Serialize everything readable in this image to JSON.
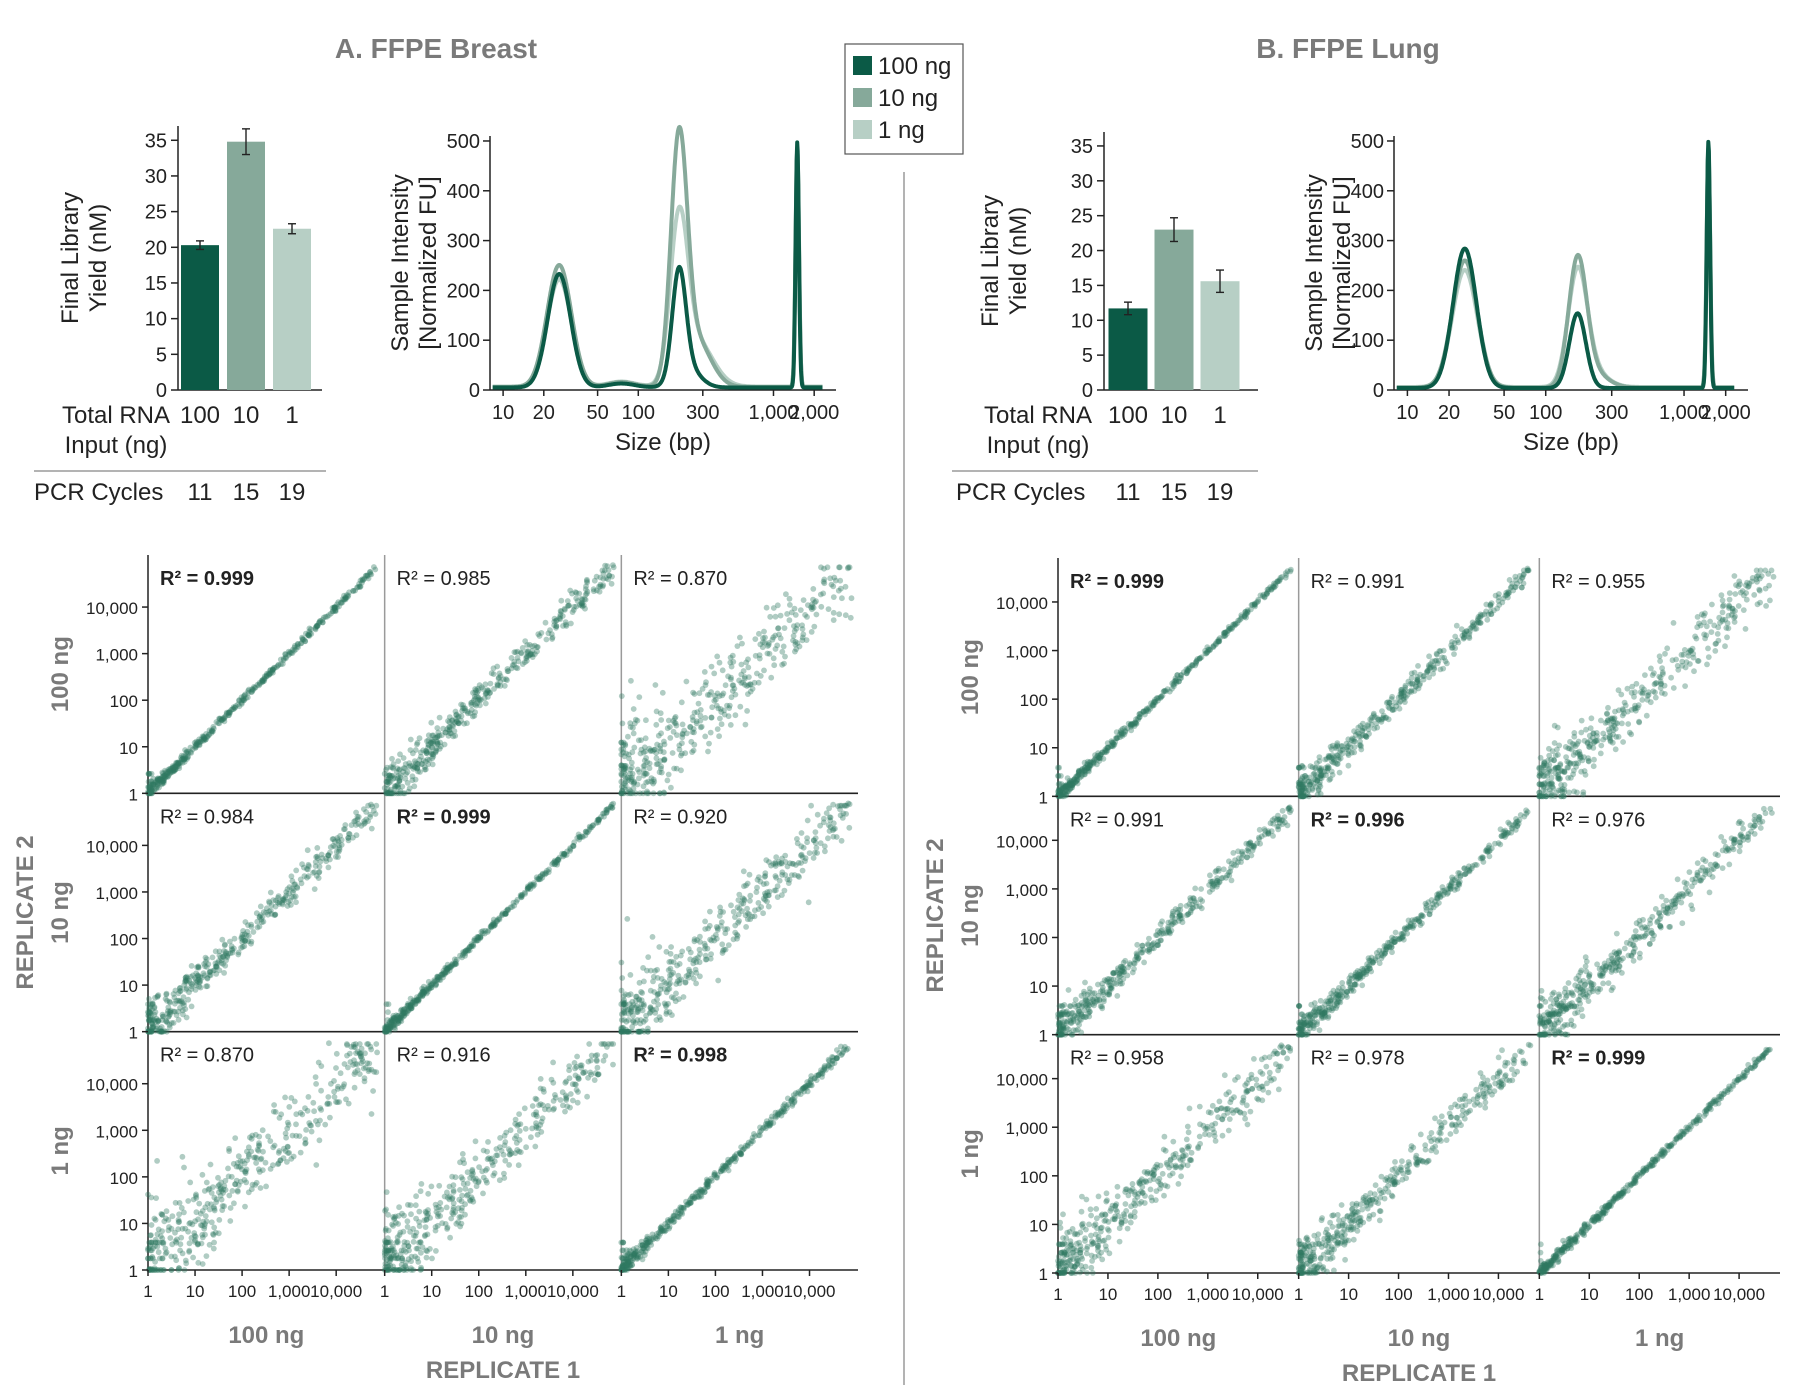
{
  "colors": {
    "c100": "#0b5a46",
    "c10": "#86a99a",
    "c1": "#b7cfc5",
    "scatter": "#2f7a62",
    "grey_text": "#7a7a7a"
  },
  "legend": {
    "items": [
      "100 ng",
      "10 ng",
      "1 ng"
    ]
  },
  "panels": [
    {
      "title": "A. FFPE Breast",
      "bar": {
        "ylabel_line1": "Final Library",
        "ylabel_line2": "Yield (nM)",
        "xlabel_line1": "Total RNA",
        "xlabel_line2": "Input (ng)",
        "pcr_label": "PCR Cycles"
      },
      "trace": {
        "ylabel_line1": "Sample Intensity",
        "ylabel_line2": "[Normalized FU]",
        "xlabel": "Size (bp)"
      },
      "matrix": {
        "row_labels": [
          "100 ng",
          "10 ng",
          "1 ng"
        ],
        "col_labels": [
          "100 ng",
          "10 ng",
          "1 ng"
        ],
        "ylabel": "REPLICATE 2",
        "xlabel": "REPLICATE 1"
      }
    },
    {
      "title": "B. FFPE Lung",
      "bar": {
        "ylabel_line1": "Final Library",
        "ylabel_line2": "Yield (nM)",
        "xlabel_line1": "Total RNA",
        "xlabel_line2": "Input (ng)",
        "pcr_label": "PCR Cycles"
      },
      "trace": {
        "ylabel_line1": "Sample Intensity",
        "ylabel_line2": "[Normalized FU]",
        "xlabel": "Size (bp)"
      },
      "matrix": {
        "row_labels": [
          "100 ng",
          "10 ng",
          "1 ng"
        ],
        "col_labels": [
          "100 ng",
          "10 ng",
          "1 ng"
        ],
        "ylabel": "REPLICATE 2",
        "xlabel": "REPLICATE 1"
      }
    }
  ],
  "chart_data": [
    {
      "type": "bar",
      "panel": "A. FFPE Breast",
      "categories": [
        "100",
        "10",
        "1"
      ],
      "pcr_cycles": [
        "11",
        "15",
        "19"
      ],
      "values": [
        20.3,
        34.8,
        22.6
      ],
      "errors": [
        0.6,
        1.8,
        0.7
      ],
      "ylim": [
        0,
        37
      ],
      "yticks": [
        0,
        5,
        10,
        15,
        20,
        25,
        30,
        35
      ]
    },
    {
      "type": "line",
      "panel": "A. FFPE Breast",
      "xscale": "log",
      "xlim": [
        8,
        2900
      ],
      "ylim": [
        0,
        510
      ],
      "xticks": [
        10,
        20,
        50,
        100,
        300,
        1000,
        2000
      ],
      "xtick_labels": [
        "10",
        "20",
        "50",
        "100",
        "300",
        "1,000",
        "2,000"
      ],
      "yticks": [
        0,
        100,
        200,
        300,
        400,
        500
      ],
      "series": [
        {
          "legend": "1 ng",
          "color_key": "c1",
          "baseline": 7,
          "peaks": [
            [
              26,
              215,
              0.09
            ],
            [
              75,
              10,
              0.1
            ],
            [
              200,
              310,
              0.065
            ],
            [
              270,
              90,
              0.12
            ],
            [
              1500,
              460,
              0.013
            ]
          ]
        },
        {
          "legend": "10 ng",
          "color_key": "c10",
          "baseline": 6,
          "peaks": [
            [
              26,
              245,
              0.09
            ],
            [
              75,
              10,
              0.1
            ],
            [
              200,
              470,
              0.06
            ],
            [
              265,
              95,
              0.11
            ],
            [
              1500,
              480,
              0.013
            ]
          ]
        },
        {
          "legend": "100 ng",
          "color_key": "c100",
          "baseline": 5,
          "peaks": [
            [
              26,
              228,
              0.085
            ],
            [
              75,
              8,
              0.1
            ],
            [
              200,
              210,
              0.05
            ],
            [
              230,
              40,
              0.09
            ],
            [
              1500,
              493,
              0.012
            ]
          ]
        }
      ]
    },
    {
      "type": "scatter",
      "panel": "A. FFPE Breast",
      "xscale": "log",
      "yscale": "log",
      "xlim": [
        1,
        80000
      ],
      "ylim": [
        1,
        80000
      ],
      "ticks": [
        1,
        10,
        100,
        1000,
        10000
      ],
      "tick_labels": [
        "1",
        "10",
        "100",
        "1,000",
        "10,000"
      ],
      "r2": [
        [
          "0.999",
          "0.985",
          "0.870"
        ],
        [
          "0.984",
          "0.999",
          "0.920"
        ],
        [
          "0.870",
          "0.916",
          "0.998"
        ]
      ],
      "r2_bold": [
        [
          true,
          false,
          false
        ],
        [
          false,
          true,
          false
        ],
        [
          false,
          false,
          true
        ]
      ]
    },
    {
      "type": "bar",
      "panel": "B. FFPE Lung",
      "categories": [
        "100",
        "10",
        "1"
      ],
      "pcr_cycles": [
        "11",
        "15",
        "19"
      ],
      "values": [
        11.7,
        23.0,
        15.6
      ],
      "errors": [
        0.9,
        1.7,
        1.6
      ],
      "ylim": [
        0,
        37
      ],
      "yticks": [
        0,
        5,
        10,
        15,
        20,
        25,
        30,
        35
      ]
    },
    {
      "type": "line",
      "panel": "B. FFPE Lung",
      "xscale": "log",
      "xlim": [
        8,
        2900
      ],
      "ylim": [
        0,
        510
      ],
      "xticks": [
        10,
        20,
        50,
        100,
        300,
        1000,
        2000
      ],
      "xtick_labels": [
        "10",
        "20",
        "50",
        "100",
        "300",
        "1,000",
        "2,000"
      ],
      "yticks": [
        0,
        100,
        200,
        300,
        400,
        500
      ],
      "series": [
        {
          "legend": "1 ng",
          "color_key": "c1",
          "baseline": 6,
          "peaks": [
            [
              26,
              235,
              0.09
            ],
            [
              170,
              225,
              0.07
            ],
            [
              220,
              30,
              0.1
            ],
            [
              1500,
              470,
              0.013
            ]
          ]
        },
        {
          "legend": "10 ng",
          "color_key": "c10",
          "baseline": 5,
          "peaks": [
            [
              26,
              255,
              0.09
            ],
            [
              170,
              250,
              0.065
            ],
            [
              220,
              30,
              0.1
            ],
            [
              1500,
              480,
              0.013
            ]
          ]
        },
        {
          "legend": "100 ng",
          "color_key": "c100",
          "baseline": 4,
          "peaks": [
            [
              26,
              280,
              0.085
            ],
            [
              170,
              150,
              0.06
            ],
            [
              1500,
              495,
              0.012
            ]
          ]
        }
      ]
    },
    {
      "type": "scatter",
      "panel": "B. FFPE Lung",
      "xscale": "log",
      "yscale": "log",
      "xlim": [
        1,
        50000
      ],
      "ylim": [
        1,
        50000
      ],
      "ticks": [
        1,
        10,
        100,
        1000,
        10000
      ],
      "tick_labels": [
        "1",
        "10",
        "100",
        "1,000",
        "10,000"
      ],
      "r2": [
        [
          "0.999",
          "0.991",
          "0.955"
        ],
        [
          "0.991",
          "0.996",
          "0.976"
        ],
        [
          "0.958",
          "0.978",
          "0.999"
        ]
      ],
      "r2_bold": [
        [
          true,
          false,
          false
        ],
        [
          false,
          true,
          false
        ],
        [
          false,
          false,
          true
        ]
      ]
    }
  ]
}
